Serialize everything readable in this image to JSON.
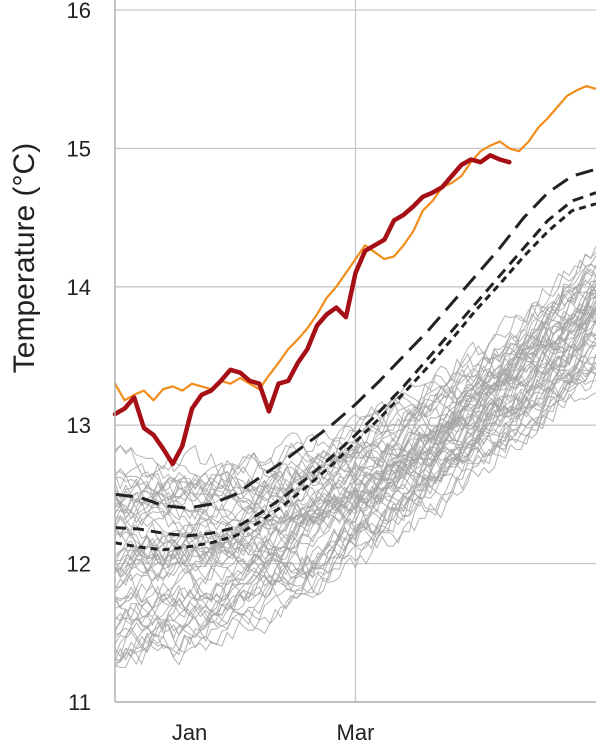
{
  "chart_data": {
    "type": "line",
    "title": "",
    "xlabel": "",
    "ylabel": "Temperature (°C)",
    "ylim": [
      11,
      16
    ],
    "yticks": [
      11,
      12,
      13,
      14,
      15,
      16
    ],
    "xlim": [
      0,
      1
    ],
    "x_ticks": [
      {
        "label": "Jan",
        "x": 0.155
      },
      {
        "label": "Mar",
        "x": 0.5
      }
    ],
    "grid": true,
    "colors": {
      "background_series": "#a6a6a6",
      "series_current": "#a50f15",
      "series_record": "#f28c1a",
      "series_mean": "#222222",
      "grid": "#c8c8c8"
    },
    "background_traces": {
      "count": 60,
      "description_free": true
    },
    "series": [
      {
        "style": "thick-dark-red",
        "x": [
          0.0,
          0.02,
          0.04,
          0.06,
          0.08,
          0.1,
          0.12,
          0.14,
          0.16,
          0.18,
          0.2,
          0.22,
          0.24,
          0.26,
          0.28,
          0.3,
          0.32,
          0.34,
          0.36,
          0.38,
          0.4,
          0.42,
          0.44,
          0.46,
          0.48,
          0.5,
          0.52,
          0.54,
          0.56,
          0.58,
          0.6,
          0.62,
          0.64,
          0.66,
          0.68,
          0.7,
          0.72,
          0.74,
          0.76,
          0.78,
          0.8,
          0.82
        ],
        "values": [
          13.08,
          13.12,
          13.2,
          12.98,
          12.93,
          12.83,
          12.72,
          12.85,
          13.12,
          13.22,
          13.25,
          13.32,
          13.4,
          13.38,
          13.32,
          13.3,
          13.1,
          13.3,
          13.32,
          13.45,
          13.55,
          13.72,
          13.8,
          13.85,
          13.78,
          14.1,
          14.26,
          14.3,
          14.34,
          14.48,
          14.52,
          14.58,
          14.65,
          14.68,
          14.72,
          14.8,
          14.88,
          14.92,
          14.9,
          14.95,
          14.92,
          14.9
        ]
      },
      {
        "style": "orange",
        "x": [
          0.0,
          0.02,
          0.04,
          0.06,
          0.08,
          0.1,
          0.12,
          0.14,
          0.16,
          0.18,
          0.2,
          0.22,
          0.24,
          0.26,
          0.28,
          0.3,
          0.32,
          0.34,
          0.36,
          0.38,
          0.4,
          0.42,
          0.44,
          0.46,
          0.48,
          0.5,
          0.52,
          0.54,
          0.56,
          0.58,
          0.6,
          0.62,
          0.64,
          0.66,
          0.68,
          0.7,
          0.72,
          0.74,
          0.76,
          0.78,
          0.8,
          0.82,
          0.84,
          0.86,
          0.88,
          0.9,
          0.92,
          0.94,
          0.96,
          0.98,
          1.0
        ],
        "values": [
          13.3,
          13.18,
          13.22,
          13.25,
          13.18,
          13.26,
          13.28,
          13.25,
          13.3,
          13.28,
          13.26,
          13.32,
          13.3,
          13.34,
          13.3,
          13.26,
          13.36,
          13.45,
          13.55,
          13.62,
          13.7,
          13.8,
          13.92,
          14.0,
          14.1,
          14.2,
          14.3,
          14.25,
          14.2,
          14.22,
          14.3,
          14.4,
          14.55,
          14.62,
          14.72,
          14.75,
          14.8,
          14.9,
          14.98,
          15.02,
          15.05,
          15.0,
          14.98,
          15.05,
          15.15,
          15.22,
          15.3,
          15.38,
          15.42,
          15.45,
          15.43
        ]
      },
      {
        "style": "dash-long",
        "x": [
          0.0,
          0.05,
          0.1,
          0.15,
          0.2,
          0.25,
          0.3,
          0.35,
          0.4,
          0.45,
          0.5,
          0.55,
          0.6,
          0.65,
          0.7,
          0.75,
          0.8,
          0.85,
          0.9,
          0.95,
          1.0
        ],
        "values": [
          12.5,
          12.48,
          12.42,
          12.4,
          12.43,
          12.5,
          12.62,
          12.74,
          12.87,
          13.0,
          13.15,
          13.32,
          13.5,
          13.68,
          13.88,
          14.08,
          14.28,
          14.5,
          14.68,
          14.8,
          14.85
        ]
      },
      {
        "style": "dash-medium",
        "x": [
          0.0,
          0.05,
          0.1,
          0.15,
          0.2,
          0.25,
          0.3,
          0.35,
          0.4,
          0.45,
          0.5,
          0.55,
          0.6,
          0.65,
          0.7,
          0.75,
          0.8,
          0.85,
          0.9,
          0.95,
          1.0
        ],
        "values": [
          12.26,
          12.25,
          12.22,
          12.2,
          12.22,
          12.26,
          12.36,
          12.48,
          12.62,
          12.77,
          12.93,
          13.1,
          13.28,
          13.48,
          13.68,
          13.88,
          14.08,
          14.28,
          14.48,
          14.62,
          14.68
        ]
      },
      {
        "style": "dash-short",
        "x": [
          0.0,
          0.05,
          0.1,
          0.15,
          0.2,
          0.25,
          0.3,
          0.35,
          0.4,
          0.45,
          0.5,
          0.55,
          0.6,
          0.65,
          0.7,
          0.75,
          0.8,
          0.85,
          0.9,
          0.95,
          1.0
        ],
        "values": [
          12.15,
          12.12,
          12.1,
          12.12,
          12.15,
          12.2,
          12.3,
          12.42,
          12.56,
          12.71,
          12.88,
          13.05,
          13.23,
          13.42,
          13.62,
          13.83,
          14.02,
          14.22,
          14.4,
          14.55,
          14.6
        ]
      }
    ]
  }
}
